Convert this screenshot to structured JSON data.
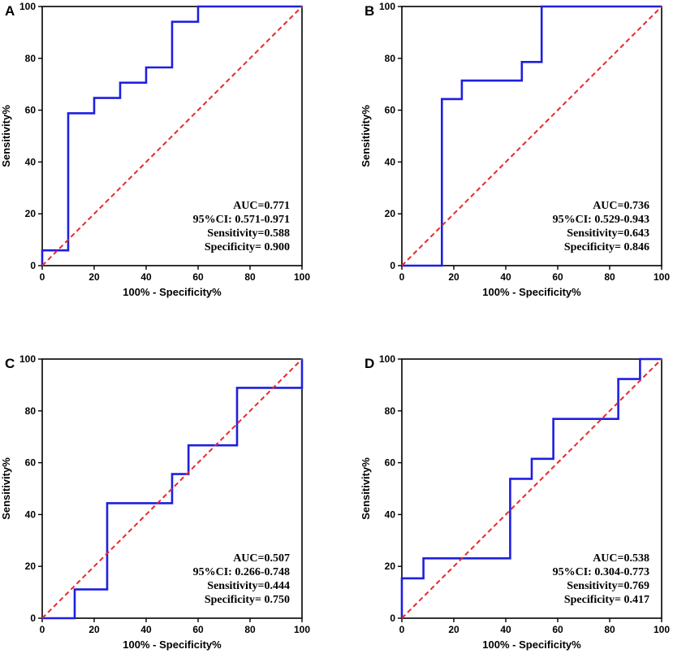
{
  "colors": {
    "roc_line": "#1f1fe0",
    "reference_line": "#e8292b",
    "axis": "#000000"
  },
  "chart_data": [
    {
      "type": "line",
      "panel_label": "A",
      "xlabel": "100% - Specificity%",
      "ylabel": "Sensitivity%",
      "xlim": [
        0,
        100
      ],
      "ylim": [
        0,
        100
      ],
      "xticks": [
        0,
        20,
        40,
        60,
        80,
        100
      ],
      "yticks": [
        0,
        20,
        40,
        60,
        80,
        100
      ],
      "series": [
        {
          "name": "ROC curve",
          "x": [
            0,
            0,
            10,
            10,
            20,
            20,
            30,
            30,
            40,
            40,
            50,
            50,
            60,
            60,
            100
          ],
          "y": [
            0,
            5.9,
            5.9,
            58.8,
            58.8,
            64.7,
            64.7,
            70.6,
            70.6,
            76.5,
            76.5,
            94.1,
            94.1,
            100,
            100
          ]
        },
        {
          "name": "Reference line",
          "x": [
            0,
            100
          ],
          "y": [
            0,
            100
          ]
        }
      ],
      "stats": [
        "AUC=0.771",
        "95%CI: 0.571-0.971",
        "Sensitivity=0.588",
        "Specificity= 0.900"
      ]
    },
    {
      "type": "line",
      "panel_label": "B",
      "xlabel": "100% - Specificity%",
      "ylabel": "Sensitivity%",
      "xlim": [
        0,
        100
      ],
      "ylim": [
        0,
        100
      ],
      "xticks": [
        0,
        20,
        40,
        60,
        80,
        100
      ],
      "yticks": [
        0,
        20,
        40,
        60,
        80,
        100
      ],
      "series": [
        {
          "name": "ROC curve",
          "x": [
            0,
            15.4,
            15.4,
            23.1,
            23.1,
            46.2,
            46.2,
            53.8,
            53.8,
            100
          ],
          "y": [
            0,
            0,
            64.3,
            64.3,
            71.4,
            71.4,
            78.6,
            78.6,
            100,
            100
          ]
        },
        {
          "name": "Reference line",
          "x": [
            0,
            100
          ],
          "y": [
            0,
            100
          ]
        }
      ],
      "stats": [
        "AUC=0.736",
        "95%CI: 0.529-0.943",
        "Sensitivity=0.643",
        "Specificity= 0.846"
      ]
    },
    {
      "type": "line",
      "panel_label": "C",
      "xlabel": "100% - Specificity%",
      "ylabel": "Sensitivity%",
      "xlim": [
        0,
        100
      ],
      "ylim": [
        0,
        100
      ],
      "xticks": [
        0,
        20,
        40,
        60,
        80,
        100
      ],
      "yticks": [
        0,
        20,
        40,
        60,
        80,
        100
      ],
      "series": [
        {
          "name": "ROC curve",
          "x": [
            0,
            12.5,
            12.5,
            25,
            25,
            50,
            50,
            56.3,
            56.3,
            75,
            75,
            100,
            100
          ],
          "y": [
            0,
            0,
            11.1,
            11.1,
            44.4,
            44.4,
            55.6,
            55.6,
            66.7,
            66.7,
            88.9,
            88.9,
            100
          ]
        },
        {
          "name": "Reference line",
          "x": [
            0,
            100
          ],
          "y": [
            0,
            100
          ]
        }
      ],
      "stats": [
        "AUC=0.507",
        "95%CI: 0.266-0.748",
        "Sensitivity=0.444",
        "Specificity= 0.750"
      ]
    },
    {
      "type": "line",
      "panel_label": "D",
      "xlabel": "100% - Specificity%",
      "ylabel": "Sensitivity%",
      "xlim": [
        0,
        100
      ],
      "ylim": [
        0,
        100
      ],
      "xticks": [
        0,
        20,
        40,
        60,
        80,
        100
      ],
      "yticks": [
        0,
        20,
        40,
        60,
        80,
        100
      ],
      "series": [
        {
          "name": "ROC curve",
          "x": [
            0,
            0,
            8.3,
            8.3,
            41.7,
            41.7,
            50,
            50,
            58.3,
            58.3,
            83.3,
            83.3,
            91.7,
            91.7,
            100
          ],
          "y": [
            0,
            15.4,
            15.4,
            23.1,
            23.1,
            53.8,
            53.8,
            61.5,
            61.5,
            76.9,
            76.9,
            92.3,
            92.3,
            100,
            100
          ]
        },
        {
          "name": "Reference line",
          "x": [
            0,
            100
          ],
          "y": [
            0,
            100
          ]
        }
      ],
      "stats": [
        "AUC=0.538",
        "95%CI: 0.304-0.773",
        "Sensitivity=0.769",
        "Specificity= 0.417"
      ]
    }
  ]
}
